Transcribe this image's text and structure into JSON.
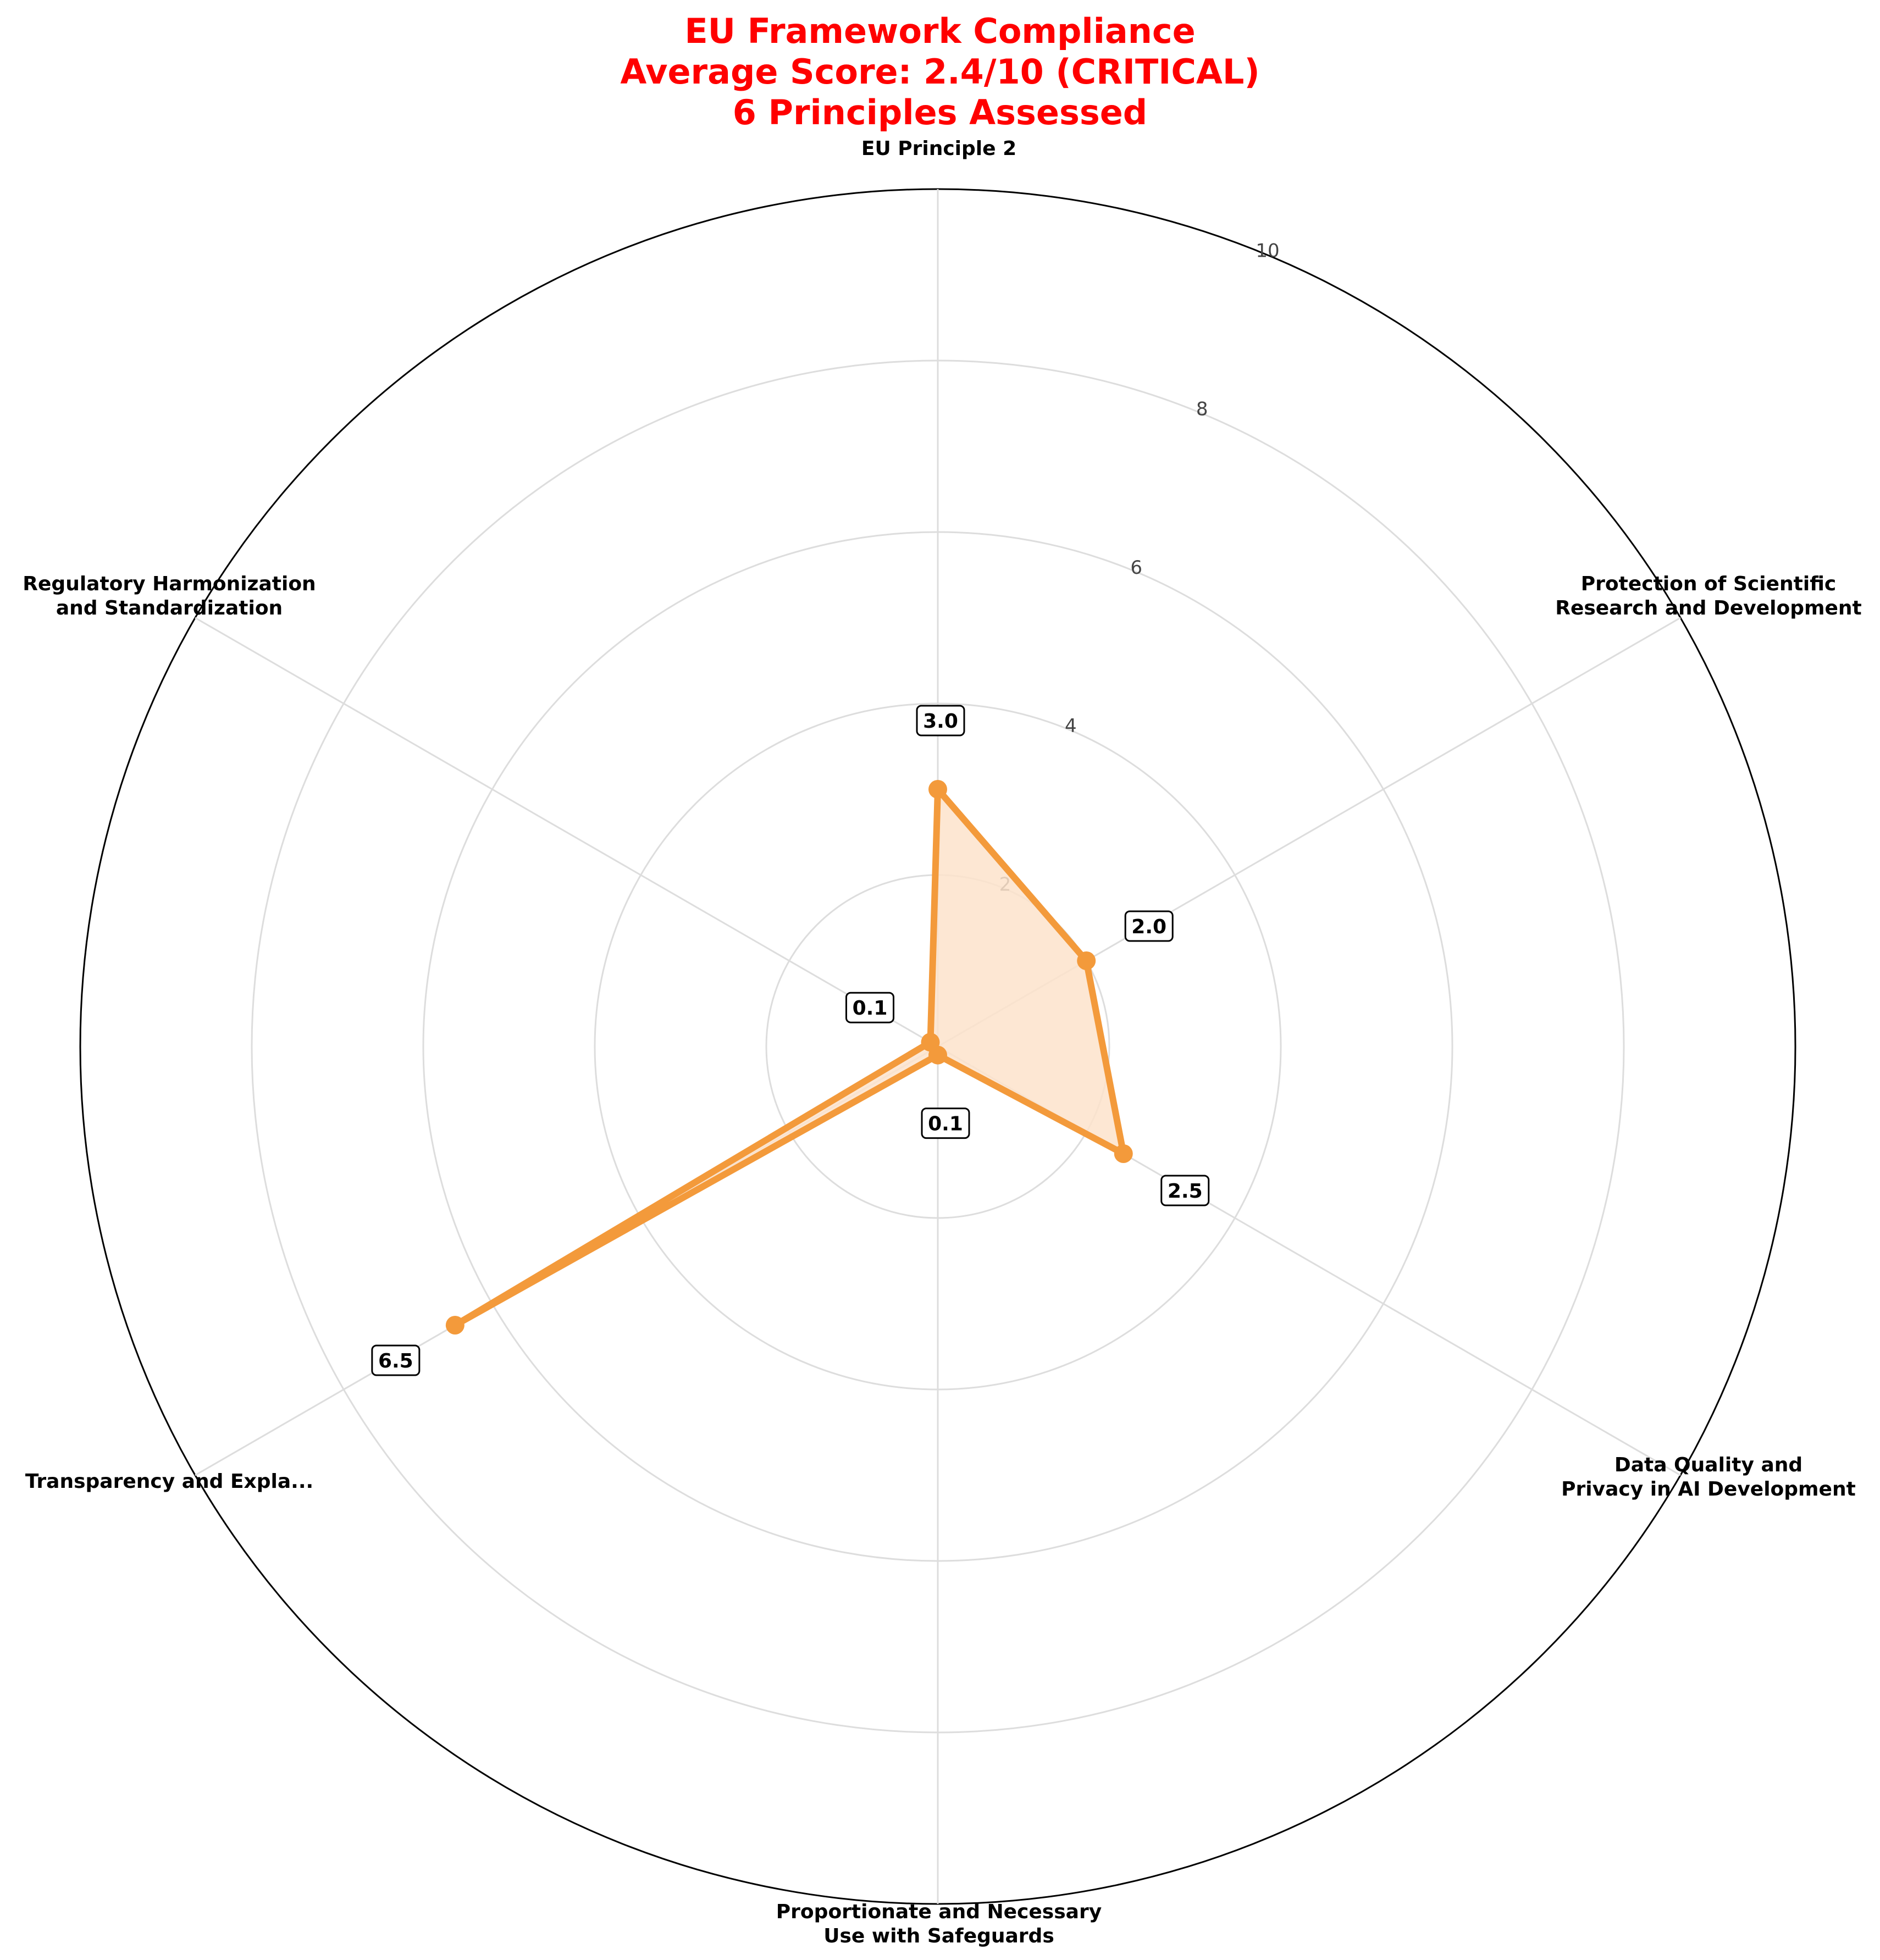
{
  "colors": {
    "title": "#ff0000",
    "series": "#f39a3b",
    "fill": "#fde3cb",
    "grid": "#dddddd",
    "outline": "#000000"
  },
  "chart_data": {
    "type": "radar",
    "title_lines": [
      "EU Framework Compliance",
      "Average Score: 2.4/10 (CRITICAL)",
      "6 Principles Assessed"
    ],
    "categories": [
      [
        "EU Principle 2"
      ],
      [
        "Protection of Scientific",
        "Research and Development"
      ],
      [
        "Data Quality and",
        "Privacy in AI Development"
      ],
      [
        "Proportionate and Necessary",
        "Use with Safeguards"
      ],
      [
        "Transparency and Expla..."
      ],
      [
        "Regulatory Harmonization",
        "and Standardization"
      ]
    ],
    "series": [
      {
        "values": [
          3.0,
          2.0,
          2.5,
          0.1,
          6.5,
          0.1
        ]
      }
    ],
    "value_labels": [
      "3.0",
      "2.0",
      "2.5",
      "0.1",
      "6.5",
      "0.1"
    ],
    "rlim": [
      0,
      10
    ],
    "rticks": [
      2,
      4,
      6,
      8,
      10
    ],
    "grid": true,
    "legend": false
  }
}
